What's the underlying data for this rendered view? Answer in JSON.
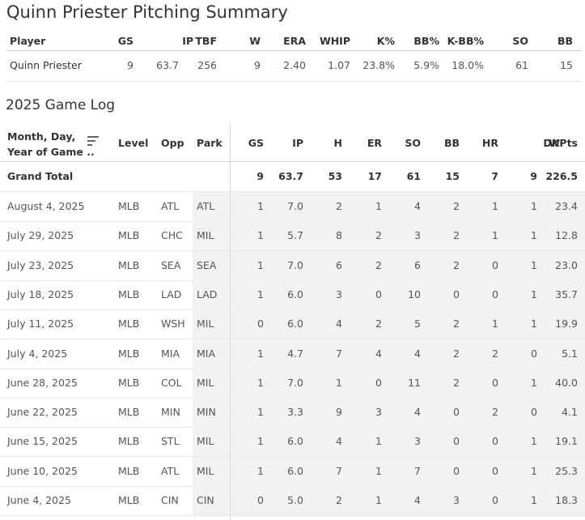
{
  "title": "Quinn Priester Pitching Summary",
  "summary": {
    "headers": [
      "Player",
      "GS",
      "IP",
      "TBF",
      "W",
      "ERA",
      "WHIP",
      "K%",
      "BB%",
      "K-BB%",
      "SO",
      "BB"
    ],
    "row": [
      "Quinn Priester",
      "9",
      "63.7",
      "256",
      "9",
      "2.40",
      "1.07",
      "23.8%",
      "5.9%",
      "18.0%",
      "61",
      "15"
    ]
  },
  "game_log": {
    "title": "2025 Game Log",
    "date_header_line1": "Month, Day,",
    "date_header_line2": "Year of Game ..",
    "headers": [
      "Level",
      "Opp",
      "Park",
      "GS",
      "IP",
      "H",
      "ER",
      "SO",
      "BB",
      "HR",
      "W",
      "DKPts"
    ],
    "total": [
      "Grand Total",
      "",
      "",
      "",
      "9",
      "63.7",
      "53",
      "17",
      "61",
      "15",
      "7",
      "9",
      "226.5"
    ],
    "rows": [
      [
        "August 4, 2025",
        "MLB",
        "ATL",
        "ATL",
        "1",
        "7.0",
        "2",
        "1",
        "4",
        "2",
        "1",
        "1",
        "23.4"
      ],
      [
        "July 29, 2025",
        "MLB",
        "CHC",
        "MIL",
        "1",
        "5.7",
        "8",
        "2",
        "3",
        "2",
        "1",
        "1",
        "12.8"
      ],
      [
        "July 23, 2025",
        "MLB",
        "SEA",
        "SEA",
        "1",
        "7.0",
        "6",
        "2",
        "6",
        "2",
        "0",
        "1",
        "23.0"
      ],
      [
        "July 18, 2025",
        "MLB",
        "LAD",
        "LAD",
        "1",
        "6.0",
        "3",
        "0",
        "10",
        "0",
        "0",
        "1",
        "35.7"
      ],
      [
        "July 11, 2025",
        "MLB",
        "WSH",
        "MIL",
        "0",
        "6.0",
        "4",
        "2",
        "5",
        "2",
        "1",
        "1",
        "19.9"
      ],
      [
        "July 4, 2025",
        "MLB",
        "MIA",
        "MIA",
        "1",
        "4.7",
        "7",
        "4",
        "4",
        "2",
        "2",
        "0",
        "5.1"
      ],
      [
        "June 28, 2025",
        "MLB",
        "COL",
        "MIL",
        "1",
        "7.0",
        "1",
        "0",
        "11",
        "2",
        "0",
        "1",
        "40.0"
      ],
      [
        "June 22, 2025",
        "MLB",
        "MIN",
        "MIN",
        "1",
        "3.3",
        "9",
        "3",
        "4",
        "0",
        "2",
        "0",
        "4.1"
      ],
      [
        "June 15, 2025",
        "MLB",
        "STL",
        "MIL",
        "1",
        "6.0",
        "4",
        "1",
        "3",
        "0",
        "0",
        "1",
        "19.1"
      ],
      [
        "June 10, 2025",
        "MLB",
        "ATL",
        "MIL",
        "1",
        "6.0",
        "7",
        "1",
        "7",
        "0",
        "0",
        "1",
        "25.3"
      ],
      [
        "June 4, 2025",
        "MLB",
        "CIN",
        "CIN",
        "0",
        "5.0",
        "2",
        "1",
        "4",
        "3",
        "0",
        "1",
        "18.3"
      ]
    ]
  },
  "icons": {
    "sort": "sort-lines-icon"
  },
  "colors": {
    "shade": "#f2f2f2",
    "text": "#333333",
    "muted": "#555555"
  }
}
